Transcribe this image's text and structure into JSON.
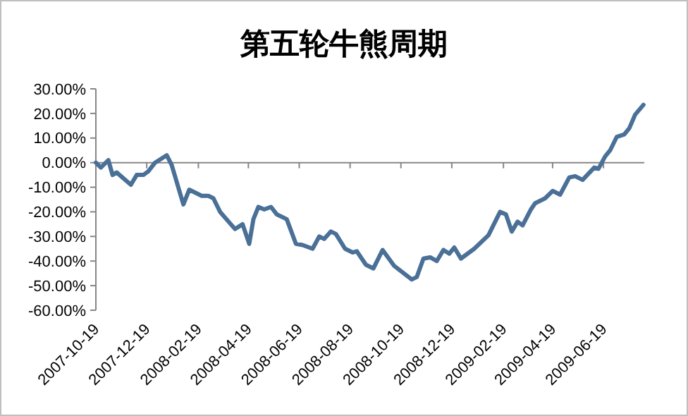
{
  "chart_data": {
    "type": "line",
    "title": "第五轮牛熊周期",
    "x": [
      "2007-10-19",
      "2007-10-25",
      "2007-11-03",
      "2007-11-08",
      "2007-11-13",
      "2007-11-30",
      "2007-12-07",
      "2007-12-15",
      "2007-12-21",
      "2007-12-29",
      "2008-01-12",
      "2008-01-18",
      "2008-02-01",
      "2008-02-08",
      "2008-02-23",
      "2008-03-02",
      "2008-03-08",
      "2008-03-16",
      "2008-04-03",
      "2008-04-12",
      "2008-04-20",
      "2008-04-25",
      "2008-05-01",
      "2008-05-08",
      "2008-05-16",
      "2008-05-23",
      "2008-06-04",
      "2008-06-15",
      "2008-06-23",
      "2008-07-05",
      "2008-07-13",
      "2008-07-19",
      "2008-07-27",
      "2008-08-02",
      "2008-08-13",
      "2008-08-22",
      "2008-08-27",
      "2008-09-07",
      "2008-09-16",
      "2008-09-27",
      "2008-10-11",
      "2008-11-01",
      "2008-11-07",
      "2008-11-15",
      "2008-11-23",
      "2008-12-01",
      "2008-12-09",
      "2008-12-16",
      "2008-12-22",
      "2008-12-30",
      "2009-01-15",
      "2009-02-01",
      "2009-02-15",
      "2009-02-22",
      "2009-03-01",
      "2009-03-08",
      "2009-03-14",
      "2009-03-24",
      "2009-03-29",
      "2009-04-10",
      "2009-04-19",
      "2009-04-28",
      "2009-05-09",
      "2009-05-16",
      "2009-05-25",
      "2009-06-08",
      "2009-06-13",
      "2009-06-21",
      "2009-06-27",
      "2009-07-05",
      "2009-07-14",
      "2009-07-20",
      "2009-07-27",
      "2009-08-06"
    ],
    "series": [
      {
        "color": "#4a7097",
        "values": [
          0,
          -2,
          1,
          -5,
          -4,
          -9,
          -5,
          -5,
          -3.5,
          0,
          3,
          -1,
          -17,
          -11,
          -13.5,
          -13.5,
          -14.5,
          -20,
          -27,
          -25,
          -33,
          -23,
          -18,
          -19,
          -18,
          -21,
          -23,
          -33,
          -33.5,
          -35,
          -30,
          -31,
          -28,
          -29,
          -35,
          -36.5,
          -36,
          -41.5,
          -43,
          -35.5,
          -42,
          -47.5,
          -46.5,
          -39,
          -38.5,
          -40,
          -35.5,
          -37,
          -34.5,
          -39,
          -35,
          -29.5,
          -20,
          -21,
          -28,
          -24,
          -25.5,
          -19,
          -16.5,
          -14.5,
          -11.5,
          -13,
          -6,
          -5.5,
          -7,
          -2,
          -2.5,
          2.5,
          5,
          10.5,
          11.5,
          14,
          19.5,
          23.5
        ]
      }
    ],
    "xlim": [
      "2007-10-19",
      "2009-08-07"
    ],
    "xticks": [
      "2007-10-19",
      "2007-12-19",
      "2008-02-19",
      "2008-04-19",
      "2008-06-19",
      "2008-08-19",
      "2008-10-19",
      "2008-12-19",
      "2009-02-19",
      "2009-04-19",
      "2009-06-19"
    ],
    "ylim": [
      -60,
      30
    ],
    "yticks": [
      {
        "value": 30,
        "label": "30.00%"
      },
      {
        "value": 20,
        "label": "20.00%"
      },
      {
        "value": 10,
        "label": "10.00%"
      },
      {
        "value": 0,
        "label": "0.00%"
      },
      {
        "value": -10,
        "label": "-10.00%"
      },
      {
        "value": -20,
        "label": "-20.00%"
      },
      {
        "value": -30,
        "label": "-30.00%"
      },
      {
        "value": -40,
        "label": "-40.00%"
      },
      {
        "value": -50,
        "label": "-50.00%"
      },
      {
        "value": -60,
        "label": "-60.00%"
      }
    ],
    "marker": "none",
    "line_style": "solid"
  }
}
